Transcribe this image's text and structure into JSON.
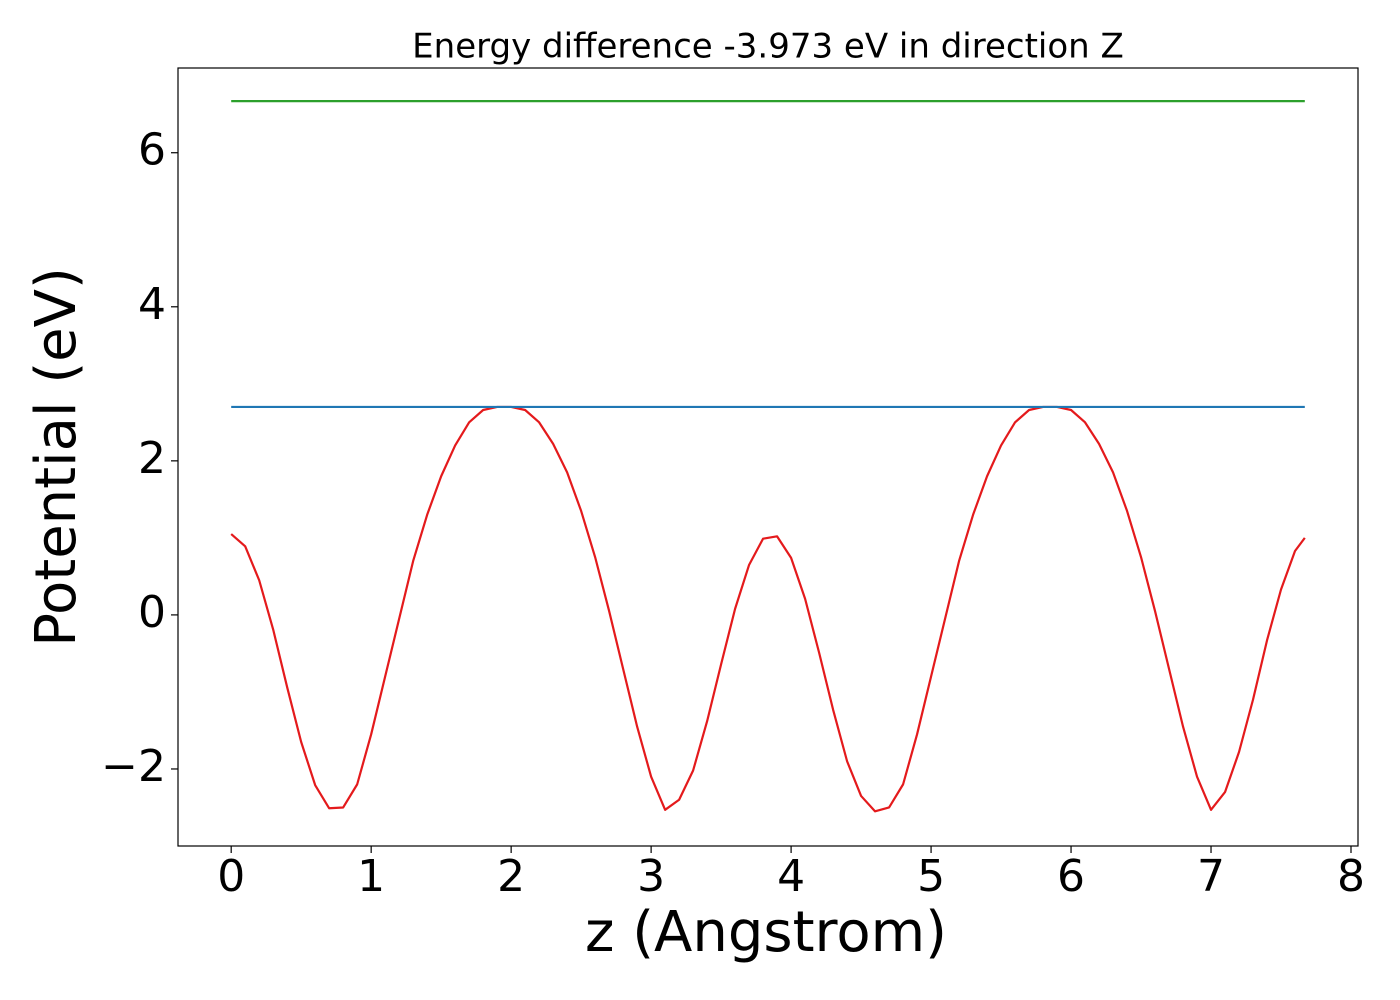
{
  "chart_data": {
    "type": "line",
    "title": "Energy difference -3.973 eV in direction Z",
    "xlabel": "z (Angstrom)",
    "ylabel": "Potential (eV)",
    "xlim": [
      -0.38,
      8.05
    ],
    "ylim": [
      -3.0,
      7.1
    ],
    "xticks": [
      0,
      1,
      2,
      3,
      4,
      5,
      6,
      7,
      8
    ],
    "yticks": [
      {
        "value": -2,
        "label": "−2"
      },
      0,
      2,
      4,
      6
    ],
    "grid": false,
    "series": [
      {
        "color": "#e41a1c",
        "x": [
          0,
          0.1,
          0.2,
          0.3,
          0.4,
          0.5,
          0.6,
          0.7,
          0.8,
          0.9,
          1.0,
          1.1,
          1.2,
          1.3,
          1.4,
          1.5,
          1.6,
          1.7,
          1.8,
          1.9,
          2.0,
          2.1,
          2.2,
          2.3,
          2.4,
          2.5,
          2.6,
          2.7,
          2.8,
          2.9,
          3.0,
          3.1,
          3.2,
          3.3,
          3.4,
          3.5,
          3.6,
          3.7,
          3.8,
          3.9,
          4.0,
          4.1,
          4.2,
          4.3,
          4.4,
          4.5,
          4.6,
          4.7,
          4.8,
          4.9,
          5.0,
          5.1,
          5.2,
          5.3,
          5.4,
          5.5,
          5.6,
          5.7,
          5.8,
          5.9,
          6.0,
          6.1,
          6.2,
          6.3,
          6.4,
          6.5,
          6.6,
          6.7,
          6.8,
          6.9,
          7.0,
          7.1,
          7.2,
          7.3,
          7.4,
          7.5,
          7.6,
          7.67
        ],
        "values": [
          1.05,
          0.89,
          0.45,
          -0.19,
          -0.94,
          -1.65,
          -2.21,
          -2.51,
          -2.5,
          -2.2,
          -1.55,
          -0.8,
          -0.05,
          0.7,
          1.3,
          1.8,
          2.2,
          2.5,
          2.66,
          2.7,
          2.7,
          2.66,
          2.5,
          2.22,
          1.85,
          1.35,
          0.75,
          0.05,
          -0.7,
          -1.45,
          -2.1,
          -2.53,
          -2.4,
          -2.02,
          -1.38,
          -0.64,
          0.08,
          0.65,
          0.99,
          1.02,
          0.74,
          0.21,
          -0.49,
          -1.23,
          -1.9,
          -2.35,
          -2.55,
          -2.5,
          -2.2,
          -1.55,
          -0.8,
          -0.05,
          0.7,
          1.3,
          1.8,
          2.2,
          2.5,
          2.66,
          2.7,
          2.7,
          2.66,
          2.5,
          2.22,
          1.85,
          1.35,
          0.75,
          0.05,
          -0.7,
          -1.45,
          -2.1,
          -2.53,
          -2.3,
          -1.78,
          -1.1,
          -0.33,
          0.33,
          0.83,
          1.0
        ]
      },
      {
        "color": "#1f77b4",
        "x": [
          0,
          7.67
        ],
        "values": [
          2.7,
          2.7
        ]
      },
      {
        "color": "#2ca02c",
        "x": [
          0,
          7.67
        ],
        "values": [
          6.67,
          6.67
        ]
      }
    ]
  }
}
